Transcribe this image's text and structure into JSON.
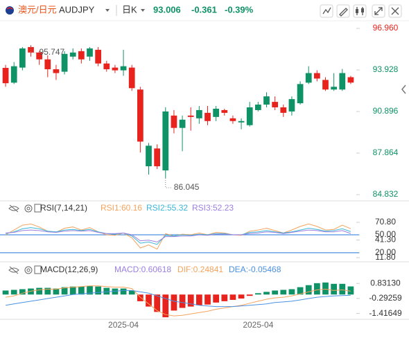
{
  "header": {
    "pair": "澳元/日元",
    "symbol": "AUDJPY",
    "period": "日K",
    "price": "93.006",
    "change": "-0.361",
    "change_pct": "-0.39%"
  },
  "chart_data": [
    {
      "type": "candlestick",
      "categories": [
        null,
        null,
        null,
        null,
        null,
        null,
        null,
        null,
        null,
        null,
        null,
        null,
        null,
        null,
        "2025-04",
        null,
        null,
        null,
        null,
        null,
        null,
        null,
        null,
        null,
        null,
        null,
        null,
        null,
        null,
        null,
        "2025-04",
        null,
        null,
        null,
        null,
        null,
        null,
        null,
        null,
        null,
        null,
        null
      ],
      "open": [
        94.08,
        93.0,
        94.1,
        95.6,
        95.2,
        94.7,
        93.98,
        93.8,
        94.9,
        95.3,
        94.9,
        95.4,
        94.4,
        94.1,
        93.9,
        94.1,
        92.5,
        86.9,
        88.2,
        86.6,
        90.6,
        89.7,
        90.6,
        90.4,
        90.8,
        90.5,
        91.0,
        90.4,
        90.1,
        89.9,
        91.0,
        91.4,
        91.6,
        91.2,
        90.9,
        91.5,
        93.0,
        93.7,
        93.2,
        92.5,
        92.5,
        93.4
      ],
      "high": [
        94.3,
        94.5,
        95.6,
        95.747,
        95.3,
        95.0,
        94.3,
        95.3,
        95.5,
        95.5,
        95.6,
        95.6,
        94.6,
        94.3,
        95.4,
        94.3,
        92.7,
        88.6,
        88.5,
        91.2,
        91.0,
        90.6,
        91.2,
        91.3,
        91.3,
        91.3,
        91.1,
        90.6,
        90.4,
        91.6,
        91.6,
        92.3,
        92.0,
        91.4,
        92.0,
        93.1,
        94.2,
        93.9,
        93.4,
        93.7,
        94.0,
        93.5
      ],
      "low": [
        92.7,
        92.9,
        93.9,
        94.9,
        94.3,
        93.4,
        93.2,
        93.6,
        94.7,
        94.4,
        94.6,
        94.2,
        93.8,
        93.7,
        93.5,
        92.4,
        87.9,
        86.3,
        86.7,
        86.045,
        89.3,
        88.0,
        89.5,
        90.0,
        89.9,
        90.2,
        90.6,
        90.0,
        89.6,
        89.8,
        90.9,
        91.2,
        91.0,
        90.5,
        90.6,
        91.4,
        92.9,
        93.1,
        92.4,
        92.4,
        92.4,
        92.9
      ],
      "close": [
        92.96,
        94.2,
        95.5,
        95.2,
        94.7,
        93.98,
        93.7,
        95.1,
        95.2,
        94.7,
        95.5,
        94.4,
        93.98,
        93.9,
        94.2,
        92.6,
        88.7,
        88.4,
        86.9,
        90.9,
        89.7,
        90.3,
        90.5,
        91.0,
        90.2,
        91.1,
        90.8,
        90.2,
        90.2,
        91.2,
        91.4,
        92.0,
        91.2,
        90.8,
        91.8,
        92.9,
        93.7,
        93.3,
        92.5,
        92.7,
        93.7,
        93.006
      ],
      "up_color": "#0e9266",
      "down_color": "#e8231d",
      "ylim": [
        84.832,
        96.96
      ],
      "yticks": [
        {
          "value": 96.96,
          "label": "96.960"
        },
        93.928,
        90.896,
        87.864,
        84.832
      ],
      "ytick_colors": [
        "#e8231d",
        "#0e9266",
        "#0e9266",
        "#0e9266",
        "#0e9266"
      ],
      "annotations": [
        95.747,
        86.045
      ]
    },
    {
      "type": "line",
      "title": "RSI(7,14,21)",
      "series": [
        {
          "name": "RSI1:60.16",
          "color": "#f5a35c",
          "values": [
            50,
            58,
            66,
            68,
            63,
            56,
            54,
            61,
            63,
            58,
            62,
            55,
            50,
            49,
            53,
            45,
            28,
            33,
            26,
            52,
            48,
            51,
            50,
            53,
            50,
            54,
            53,
            50,
            49,
            56,
            58,
            61,
            57,
            53,
            58,
            64,
            68,
            64,
            58,
            59,
            66,
            60.16
          ]
        },
        {
          "name": "RSI2:55.32",
          "color": "#3bb6d6",
          "values": [
            52,
            55,
            60,
            62,
            60,
            56,
            55,
            58,
            59,
            57,
            59,
            55,
            52,
            51,
            53,
            48,
            36,
            38,
            34,
            49,
            48,
            50,
            49,
            51,
            50,
            52,
            52,
            50,
            50,
            54,
            55,
            57,
            55,
            53,
            55,
            58,
            61,
            59,
            56,
            57,
            60,
            55.32
          ]
        },
        {
          "name": "RSI3:52.23",
          "color": "#9b7fe0",
          "values": [
            53,
            54,
            57,
            58,
            57,
            55,
            54,
            56,
            57,
            56,
            57,
            54,
            52,
            52,
            53,
            50,
            40,
            41,
            38,
            47,
            47,
            48,
            48,
            50,
            49,
            51,
            51,
            50,
            50,
            52,
            53,
            55,
            54,
            52,
            54,
            56,
            58,
            57,
            55,
            55,
            57,
            52.23
          ]
        }
      ],
      "ylim": [
        11.8,
        70.8
      ],
      "yticks": [
        {
          "value": 70.8,
          "label": "70.80"
        },
        {
          "value": 50,
          "label": "50.00"
        },
        {
          "value": 41.3,
          "label": "41.30"
        },
        {
          "value": 20,
          "label": "20.00"
        },
        {
          "value": 11.8,
          "label": "11.80"
        }
      ],
      "reference_lines": [
        50,
        20
      ],
      "reference_color": "#4a90e2"
    },
    {
      "type": "macd",
      "title": "MACD(12,26,9)",
      "series": [
        {
          "name": "MACD:0.60618",
          "color": "#9b7fe0",
          "type": "bar",
          "up_color": "#0e9266",
          "down_color": "#e8231d",
          "values": [
            0.3,
            0.35,
            0.4,
            0.45,
            0.5,
            0.5,
            0.45,
            0.55,
            0.6,
            0.6,
            0.65,
            0.6,
            0.5,
            0.45,
            0.45,
            0.3,
            -0.5,
            -0.9,
            -1.3,
            -1.7,
            -1.2,
            -1.0,
            -0.9,
            -0.8,
            -0.75,
            -0.6,
            -0.5,
            -0.4,
            -0.3,
            -0.1,
            0.1,
            0.2,
            0.3,
            0.35,
            0.4,
            0.55,
            0.7,
            0.85,
            0.9,
            0.8,
            0.8,
            0.60618
          ]
        },
        {
          "name": "DIF:0.24841",
          "color": "#f5a35c",
          "type": "line",
          "values": [
            -0.2,
            -0.1,
            0.1,
            0.25,
            0.35,
            0.4,
            0.4,
            0.5,
            0.55,
            0.6,
            0.65,
            0.65,
            0.6,
            0.55,
            0.55,
            0.45,
            -0.2,
            -0.7,
            -1.2,
            -1.5,
            -1.6,
            -1.55,
            -1.45,
            -1.35,
            -1.25,
            -1.1,
            -1.0,
            -0.9,
            -0.8,
            -0.65,
            -0.5,
            -0.35,
            -0.25,
            -0.2,
            -0.1,
            0.05,
            0.2,
            0.35,
            0.4,
            0.3,
            0.35,
            0.24841
          ]
        },
        {
          "name": "DEA:-0.05468",
          "color": "#4a90e2",
          "type": "line",
          "values": [
            -0.8,
            -0.7,
            -0.6,
            -0.5,
            -0.4,
            -0.3,
            -0.2,
            -0.1,
            0,
            0.05,
            0.1,
            0.15,
            0.2,
            0.25,
            0.3,
            0.3,
            0.2,
            0.1,
            -0.1,
            -0.3,
            -0.5,
            -0.6,
            -0.7,
            -0.8,
            -0.85,
            -0.9,
            -0.9,
            -0.9,
            -0.85,
            -0.8,
            -0.75,
            -0.7,
            -0.6,
            -0.55,
            -0.5,
            -0.4,
            -0.3,
            -0.2,
            -0.15,
            -0.1,
            -0.08,
            -0.05468
          ]
        }
      ],
      "ylim": [
        -1.8,
        1.1
      ],
      "yticks": [
        {
          "value": 0.8313,
          "label": "0.83130"
        },
        -0.29259,
        -1.41649
      ]
    }
  ]
}
